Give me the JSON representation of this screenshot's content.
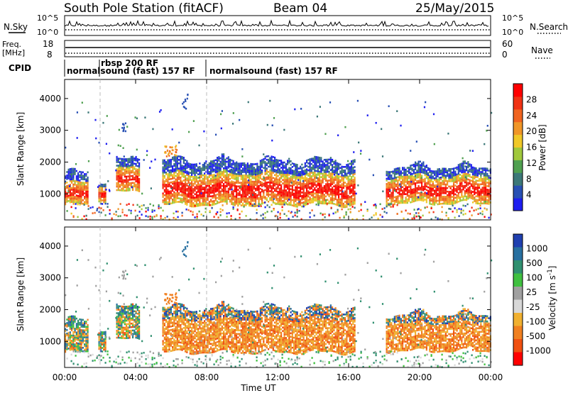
{
  "header": {
    "station": "South Pole Station (fitACF)",
    "beam": "Beam 04",
    "date": "25/May/2015"
  },
  "top_panels": {
    "nsky_label": "N.Sky",
    "nsky_ticks": [
      "10^5",
      "10^0"
    ],
    "nsearch_label": "N.Search",
    "nsearch_ticks": [
      "10^5",
      "10^0"
    ],
    "freq_label_1": "Freq.",
    "freq_label_2": "[MHz]",
    "freq_ticks": [
      "18",
      "8"
    ],
    "nave_label": "Nave",
    "nave_ticks": [
      "60",
      "0"
    ],
    "cpid_label": "CPID",
    "cpid_segments": [
      {
        "label": "normalsound (fast) 157 RF",
        "start_hour": 0,
        "end_hour": 2
      },
      {
        "label": "rbsp 200 RF",
        "start_hour": 2,
        "end_hour": 8
      },
      {
        "label": "normalsound (fast) 157 RF",
        "start_hour": 8,
        "end_hour": 24
      }
    ]
  },
  "chart_data": [
    {
      "type": "heatmap",
      "name": "power",
      "ylabel": "Slant Range [km]",
      "xlabel": "Time UT",
      "x_ticks": [
        "00:00",
        "04:00",
        "08:00",
        "12:00",
        "16:00",
        "20:00",
        "00:00"
      ],
      "xlim_hours": [
        0,
        24
      ],
      "y_ticks": [
        1000,
        2000,
        3000,
        4000
      ],
      "ylim": [
        180,
        4600
      ],
      "colorbar_label": "Power [dB]",
      "colorbar_ticks": [
        "4",
        "8",
        "12",
        "16",
        "20",
        "24",
        "28"
      ],
      "colorbar_colors": [
        "#1e1ef0",
        "#2850b4",
        "#3c7878",
        "#50a050",
        "#a0c83c",
        "#f0c828",
        "#f09628",
        "#f06420",
        "#f03214",
        "#ff0000"
      ],
      "blobs": [
        {
          "t0": 0.0,
          "t1": 1.3,
          "r0": 700,
          "r1": 1700,
          "core": 1000
        },
        {
          "t0": 1.9,
          "t1": 2.3,
          "r0": 800,
          "r1": 1500,
          "core": 1100
        },
        {
          "t0": 2.9,
          "t1": 4.2,
          "r0": 1100,
          "r1": 2100,
          "core": 1450
        },
        {
          "t0": 5.5,
          "t1": 16.3,
          "r0": 700,
          "r1": 2100,
          "core": 1150
        },
        {
          "t0": 18.1,
          "t1": 24.0,
          "r0": 750,
          "r1": 1900,
          "core": 1150
        }
      ]
    },
    {
      "type": "heatmap",
      "name": "velocity",
      "ylabel": "Slant Range [km]",
      "xlabel": "Time UT",
      "colorbar_label": "Velocity [m s^-1]",
      "colorbar_ticks": [
        "1000",
        "500",
        "100",
        "25",
        "-25",
        "-100",
        "-500",
        "-1000"
      ],
      "colorbar_colors": [
        "#2040b0",
        "#2870a0",
        "#309070",
        "#40c040",
        "#a0a0a0",
        "#d8d8d8",
        "#f0b030",
        "#f08020",
        "#f05010",
        "#ff0000"
      ]
    }
  ],
  "time_axis_label": "Time UT"
}
